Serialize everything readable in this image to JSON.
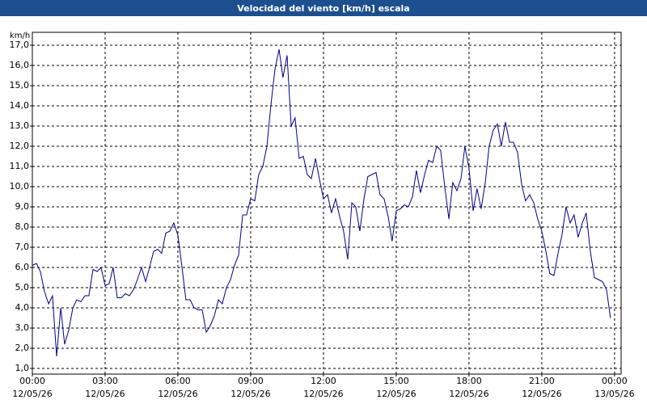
{
  "chart_data": {
    "type": "line",
    "title": "Velocidad del viento [km/h] escala",
    "y_label": "km/h",
    "xlim": [
      0,
      24.27
    ],
    "ylim": [
      0.72,
      17.64
    ],
    "xticks": [
      {
        "value": 0,
        "label": "00:00 12/05/26"
      },
      {
        "value": 3,
        "label": "03:00 12/05/26"
      },
      {
        "value": 6,
        "label": "06:00 12/05/26"
      },
      {
        "value": 9,
        "label": "09:00 12/05/26"
      },
      {
        "value": 12,
        "label": "12:00 12/05/26"
      },
      {
        "value": 15,
        "label": "15:00 12/05/26"
      },
      {
        "value": 18,
        "label": "18:00 12/05/26"
      },
      {
        "value": 21,
        "label": "21:00 12/05/26"
      },
      {
        "value": 24,
        "label": "00:00 13/05/26"
      }
    ],
    "yticks": [
      {
        "value": 1,
        "label": "1,0"
      },
      {
        "value": 2,
        "label": "2,0"
      },
      {
        "value": 3,
        "label": "3,0"
      },
      {
        "value": 4,
        "label": "4,0"
      },
      {
        "value": 5,
        "label": "5,0"
      },
      {
        "value": 6,
        "label": "6,0"
      },
      {
        "value": 7,
        "label": "7,0"
      },
      {
        "value": 8,
        "label": "8,0"
      },
      {
        "value": 9,
        "label": "9,0"
      },
      {
        "value": 10,
        "label": "10,0"
      },
      {
        "value": 11,
        "label": "11,0"
      },
      {
        "value": 12,
        "label": "12,0"
      },
      {
        "value": 13,
        "label": "13,0"
      },
      {
        "value": 14,
        "label": "14,0"
      },
      {
        "value": 15,
        "label": "15,0"
      },
      {
        "value": 16,
        "label": "16,0"
      },
      {
        "value": 17,
        "label": "17,0"
      }
    ],
    "grid": true,
    "series": [
      {
        "color": "#00008b",
        "x": [
          0,
          0.17,
          0.33,
          0.5,
          0.67,
          0.83,
          1,
          1.17,
          1.33,
          1.5,
          1.67,
          1.83,
          2,
          2.17,
          2.33,
          2.5,
          2.67,
          2.83,
          3,
          3.17,
          3.33,
          3.5,
          3.67,
          3.83,
          4,
          4.17,
          4.33,
          4.5,
          4.67,
          4.83,
          5,
          5.17,
          5.33,
          5.5,
          5.67,
          5.83,
          6,
          6.17,
          6.33,
          6.5,
          6.67,
          6.83,
          7,
          7.17,
          7.33,
          7.5,
          7.67,
          7.83,
          8,
          8.17,
          8.33,
          8.5,
          8.67,
          8.83,
          9,
          9.17,
          9.33,
          9.5,
          9.67,
          9.83,
          10,
          10.17,
          10.33,
          10.5,
          10.67,
          10.83,
          11,
          11.17,
          11.33,
          11.5,
          11.67,
          11.83,
          12,
          12.17,
          12.33,
          12.5,
          12.67,
          12.83,
          13,
          13.17,
          13.33,
          13.5,
          13.67,
          13.83,
          14,
          14.17,
          14.33,
          14.5,
          14.67,
          14.83,
          15,
          15.17,
          15.33,
          15.5,
          15.67,
          15.83,
          16,
          16.17,
          16.33,
          16.5,
          16.67,
          16.83,
          17,
          17.17,
          17.33,
          17.5,
          17.67,
          17.83,
          18,
          18.17,
          18.33,
          18.5,
          18.67,
          18.83,
          19,
          19.17,
          19.33,
          19.5,
          19.67,
          19.83,
          20,
          20.17,
          20.33,
          20.5,
          20.67,
          20.83,
          21,
          21.17,
          21.33,
          21.5,
          21.67,
          21.83,
          22,
          22.17,
          22.33,
          22.5,
          22.67,
          22.83,
          23,
          23.17,
          23.33,
          23.5,
          23.67,
          23.83
        ],
        "values": [
          6.1,
          6.2,
          5.8,
          4.8,
          4.2,
          4.6,
          1.6,
          4.0,
          2.2,
          2.9,
          4.0,
          4.4,
          4.3,
          4.6,
          4.6,
          5.9,
          5.8,
          6.0,
          5.1,
          5.2,
          6.0,
          4.5,
          4.5,
          4.7,
          4.6,
          4.9,
          5.4,
          6.0,
          5.3,
          6.0,
          6.8,
          6.9,
          6.7,
          7.7,
          7.8,
          8.2,
          7.6,
          6.0,
          4.4,
          4.4,
          4.0,
          3.9,
          3.9,
          2.8,
          3.1,
          3.6,
          4.4,
          4.2,
          5.0,
          5.4,
          6.1,
          6.6,
          8.6,
          8.6,
          9.4,
          9.3,
          10.6,
          11.0,
          12.0,
          14.0,
          15.8,
          16.8,
          15.4,
          16.5,
          13.0,
          13.4,
          11.4,
          11.5,
          10.6,
          10.4,
          11.4,
          10.4,
          9.4,
          9.6,
          8.7,
          9.4,
          8.5,
          7.8,
          6.4,
          9.2,
          9.0,
          7.8,
          9.4,
          10.5,
          10.6,
          10.7,
          9.6,
          9.4,
          8.5,
          7.3,
          8.8,
          8.9,
          9.1,
          9.0,
          9.5,
          10.8,
          9.7,
          10.6,
          11.3,
          11.2,
          12.0,
          11.8,
          10.0,
          8.4,
          10.2,
          9.8,
          10.4,
          12.0,
          10.9,
          8.8,
          9.9,
          8.9,
          10.2,
          12.0,
          12.8,
          13.1,
          12.0,
          13.2,
          12.2,
          12.2,
          11.7,
          10.1,
          9.3,
          9.6,
          9.2,
          8.4,
          7.8,
          6.8,
          5.7,
          5.6,
          6.7,
          7.6,
          9.0,
          8.2,
          8.6,
          7.5,
          8.2,
          8.7,
          6.8,
          5.5,
          5.4,
          5.3,
          4.9,
          3.5
        ]
      }
    ]
  }
}
